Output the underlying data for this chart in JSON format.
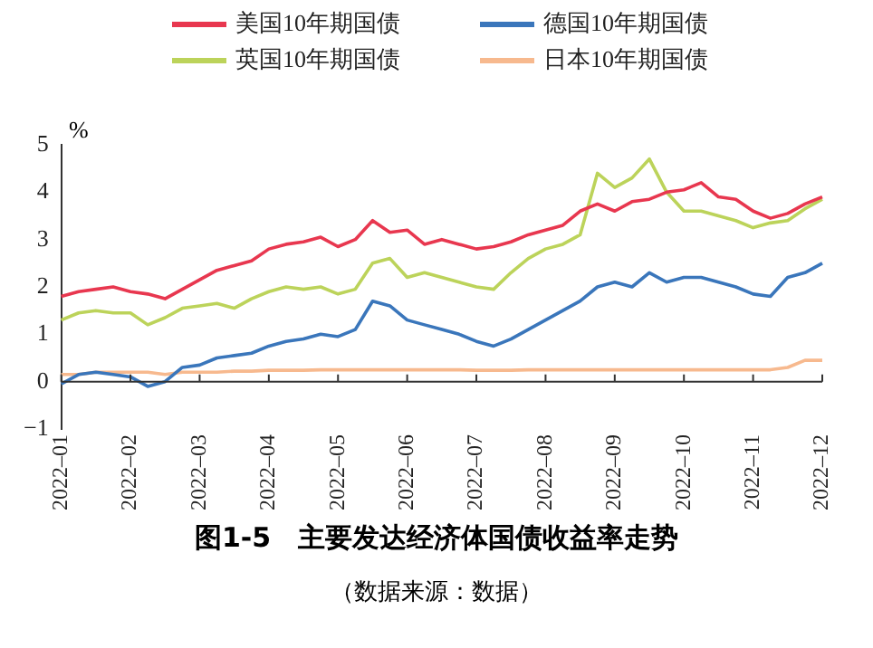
{
  "chart_data": {
    "type": "line",
    "title": "图1-5　主要发达经济体国债收益率走势",
    "ylabel": "%",
    "annotations": [
      "（数据来源：数据）"
    ],
    "categories": [
      "2022–01",
      null,
      null,
      null,
      "2022–02",
      null,
      null,
      null,
      "2022–03",
      null,
      null,
      null,
      "2022–04",
      null,
      null,
      null,
      "2022–05",
      null,
      null,
      null,
      "2022–06",
      null,
      null,
      null,
      "2022–07",
      null,
      null,
      null,
      "2022–08",
      null,
      null,
      null,
      "2022–09",
      null,
      null,
      null,
      "2022–10",
      null,
      null,
      null,
      "2022–11",
      null,
      null,
      null,
      "2022–12"
    ],
    "series": [
      {
        "name": "美国10年期国债",
        "color": "#e8374f",
        "values": [
          1.8,
          1.9,
          1.95,
          2.0,
          1.9,
          1.85,
          1.75,
          1.95,
          2.15,
          2.35,
          2.45,
          2.55,
          2.8,
          2.9,
          2.95,
          3.05,
          2.85,
          3.0,
          3.4,
          3.15,
          3.2,
          2.9,
          3.0,
          2.9,
          2.8,
          2.85,
          2.95,
          3.1,
          3.2,
          3.3,
          3.6,
          3.75,
          3.6,
          3.8,
          3.85,
          4.0,
          4.05,
          4.2,
          3.9,
          3.85,
          3.6,
          3.45,
          3.55,
          3.75,
          3.9
        ]
      },
      {
        "name": "德国10年期国债",
        "color": "#3a76bb",
        "values": [
          -0.05,
          0.15,
          0.2,
          0.15,
          0.1,
          -0.1,
          0.0,
          0.3,
          0.35,
          0.5,
          0.55,
          0.6,
          0.75,
          0.85,
          0.9,
          1.0,
          0.95,
          1.1,
          1.7,
          1.6,
          1.3,
          1.2,
          1.1,
          1.0,
          0.85,
          0.75,
          0.9,
          1.1,
          1.3,
          1.5,
          1.7,
          2.0,
          2.1,
          2.0,
          2.3,
          2.1,
          2.2,
          2.2,
          2.1,
          2.0,
          1.85,
          1.8,
          2.2,
          2.3,
          2.5
        ]
      },
      {
        "name": "英国10年期国债",
        "color": "#bcd35a",
        "values": [
          1.3,
          1.45,
          1.5,
          1.45,
          1.45,
          1.2,
          1.35,
          1.55,
          1.6,
          1.65,
          1.55,
          1.75,
          1.9,
          2.0,
          1.95,
          2.0,
          1.85,
          1.95,
          2.5,
          2.6,
          2.2,
          2.3,
          2.2,
          2.1,
          2.0,
          1.95,
          2.3,
          2.6,
          2.8,
          2.9,
          3.1,
          4.4,
          4.1,
          4.3,
          4.7,
          4.0,
          3.6,
          3.6,
          3.5,
          3.4,
          3.25,
          3.35,
          3.4,
          3.65,
          3.85
        ]
      },
      {
        "name": "日本10年期国债",
        "color": "#f7b98e",
        "values": [
          0.15,
          0.15,
          0.2,
          0.2,
          0.2,
          0.2,
          0.15,
          0.2,
          0.2,
          0.2,
          0.22,
          0.22,
          0.24,
          0.24,
          0.24,
          0.25,
          0.25,
          0.25,
          0.25,
          0.25,
          0.25,
          0.25,
          0.25,
          0.25,
          0.24,
          0.24,
          0.24,
          0.25,
          0.25,
          0.25,
          0.25,
          0.25,
          0.25,
          0.25,
          0.25,
          0.25,
          0.25,
          0.25,
          0.25,
          0.25,
          0.25,
          0.25,
          0.3,
          0.45,
          0.45
        ]
      }
    ],
    "ylim": [
      -1,
      5
    ],
    "yticks": [
      -1,
      0,
      1,
      2,
      3,
      4,
      5
    ],
    "legend": "top",
    "marker": "none",
    "line_style": "solid"
  }
}
